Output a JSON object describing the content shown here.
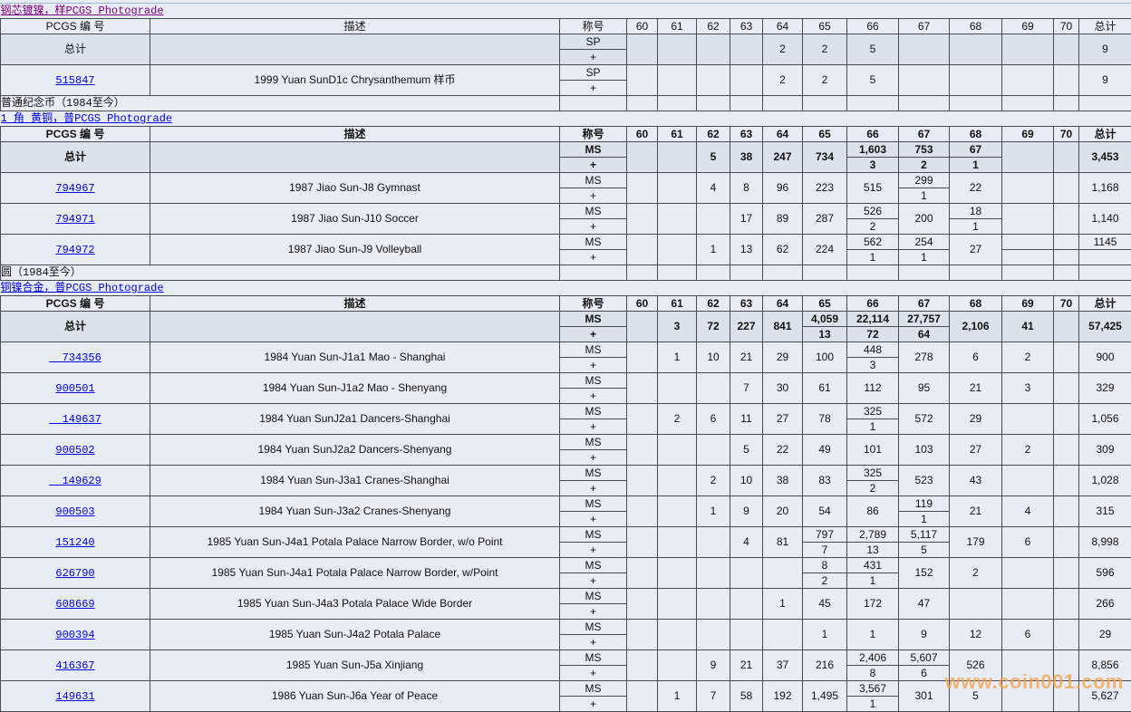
{
  "columns": {
    "pcgs": "PCGS 编 号",
    "desc": "描述",
    "designation": "称号",
    "grades": [
      "60",
      "61",
      "62",
      "63",
      "64",
      "65",
      "66",
      "67",
      "68",
      "69",
      "70"
    ],
    "total": "总计"
  },
  "plus_label": "+",
  "total_label": "总计",
  "colors": {
    "link": "#0000ee",
    "visited_link": "#800080",
    "background": "#e8ecf4",
    "total_row": "#dce2ec",
    "watermark": "#f5a046"
  },
  "sections": [
    {
      "link": "钢芯镀镍，样PCGS Photograde",
      "visited": true,
      "bold": false,
      "total": {
        "grade": "SP",
        "g": {
          "64": "2",
          "65": "2",
          "66": "5"
        },
        "sum": "9"
      },
      "rows": [
        {
          "pcgs": "515847",
          "desc": "1999 Yuan SunD1c Chrysanthemum 样币",
          "grade": "SP",
          "g": {
            "64": "2",
            "65": "2",
            "66": "5"
          },
          "sum": "9"
        }
      ],
      "category": "普通纪念币（1984至今）"
    },
    {
      "link": "1 角 黄铜，普PCGS Photograde",
      "visited": false,
      "bold": true,
      "total": {
        "grade": "MS",
        "g": {
          "62": "5",
          "63": "38",
          "64": "247",
          "65": "734",
          "66": [
            "1,603",
            "3"
          ],
          "67": [
            "753",
            "2"
          ],
          "68": [
            "67",
            "1"
          ]
        },
        "sum": "3,453"
      },
      "rows": [
        {
          "pcgs": "794967",
          "desc": "1987 Jiao Sun-J8 Gymnast",
          "grade": "MS",
          "g": {
            "62": "4",
            "63": "8",
            "64": "96",
            "65": "223",
            "66": "515",
            "67": [
              "299",
              "1"
            ],
            "68": "22"
          },
          "sum": "1,168"
        },
        {
          "pcgs": "794971",
          "desc": "1987 Jiao Sun-J10 Soccer",
          "grade": "MS",
          "g": {
            "63": "17",
            "64": "89",
            "65": "287",
            "66": [
              "526",
              "2"
            ],
            "67": "200",
            "68": [
              "18",
              "1"
            ]
          },
          "sum": "1,140"
        },
        {
          "pcgs": "794972",
          "desc": "1987 Jiao Sun-J9 Volleyball",
          "grade": "MS",
          "g": {
            "62": "1",
            "63": "13",
            "64": "62",
            "65": "224",
            "66": [
              "562",
              "1"
            ],
            "67": [
              "254",
              "1"
            ],
            "68": "27",
            "69": [
              "",
              ""
            ],
            "70": [
              "",
              ""
            ]
          },
          "sum": [
            "1145",
            ""
          ]
        }
      ],
      "category": "圆（1984至今）"
    },
    {
      "link": "铜镍合金，普PCGS Photograde",
      "visited": false,
      "bold": true,
      "total": {
        "grade": "MS",
        "g": {
          "61": "3",
          "62": "72",
          "63": "227",
          "64": "841",
          "65": [
            "4,059",
            "13"
          ],
          "66": [
            "22,114",
            "72"
          ],
          "67": [
            "27,757",
            "64"
          ],
          "68": "2,106",
          "69": "41"
        },
        "sum": "57,425"
      },
      "rows": [
        {
          "pcgs": "  734356",
          "desc": "1984 Yuan Sun-J1a1 Mao - Shanghai",
          "grade": "MS",
          "g": {
            "61": "1",
            "62": "10",
            "63": "21",
            "64": "29",
            "65": "100",
            "66": [
              "448",
              "3"
            ],
            "67": "278",
            "68": "6",
            "69": "2"
          },
          "sum": "900"
        },
        {
          "pcgs": "900501",
          "desc": "1984 Yuan Sun-J1a2 Mao - Shenyang",
          "grade": "MS",
          "g": {
            "63": "7",
            "64": "30",
            "65": "61",
            "66": "112",
            "67": "95",
            "68": "21",
            "69": "3"
          },
          "sum": "329"
        },
        {
          "pcgs": "  149637",
          "desc": "1984 Yuan SunJ2a1 Dancers-Shanghai",
          "grade": "MS",
          "g": {
            "61": "2",
            "62": "6",
            "63": "11",
            "64": "27",
            "65": "78",
            "66": [
              "325",
              "1"
            ],
            "67": "572",
            "68": "29"
          },
          "sum": "1,056"
        },
        {
          "pcgs": "900502",
          "desc": "1984 Yuan SunJ2a2 Dancers-Shenyang",
          "grade": "MS",
          "g": {
            "63": "5",
            "64": "22",
            "65": "49",
            "66": "101",
            "67": "103",
            "68": "27",
            "69": "2"
          },
          "sum": "309"
        },
        {
          "pcgs": "  149629",
          "desc": "1984 Yuan Sun-J3a1 Cranes-Shanghai",
          "grade": "MS",
          "g": {
            "62": "2",
            "63": "10",
            "64": "38",
            "65": "83",
            "66": [
              "325",
              "2"
            ],
            "67": "523",
            "68": "43"
          },
          "sum": "1,028"
        },
        {
          "pcgs": "900503",
          "desc": "1984 Yuan Sun-J3a2 Cranes-Shenyang",
          "grade": "MS",
          "g": {
            "62": "1",
            "63": "9",
            "64": "20",
            "65": "54",
            "66": "86",
            "67": [
              "119",
              "1"
            ],
            "68": "21",
            "69": "4"
          },
          "sum": "315"
        },
        {
          "pcgs": "151240",
          "desc": "1985 Yuan Sun-J4a1 Potala Palace Narrow Border, w/o Point",
          "grade": "MS",
          "g": {
            "63": "4",
            "64": "81",
            "65": [
              "797",
              "7"
            ],
            "66": [
              "2,789",
              "13"
            ],
            "67": [
              "5,117",
              "5"
            ],
            "68": "179",
            "69": "6"
          },
          "sum": "8,998"
        },
        {
          "pcgs": "626790",
          "desc": "1985 Yuan Sun-J4a1 Potala Palace Narrow Border, w/Point",
          "grade": "MS",
          "g": {
            "65": [
              "8",
              "2"
            ],
            "66": [
              "431",
              "1"
            ],
            "67": "152",
            "68": "2"
          },
          "sum": "596"
        },
        {
          "pcgs": "608669",
          "desc": "1985 Yuan Sun-J4a3 Potala Palace Wide Border",
          "grade": "MS",
          "g": {
            "64": "1",
            "65": "45",
            "66": "172",
            "67": "47"
          },
          "sum": "266"
        },
        {
          "pcgs": "900394",
          "desc": "1985 Yuan Sun-J4a2 Potala Palace",
          "grade": "MS",
          "g": {
            "65": "1",
            "66": "1",
            "67": "9",
            "68": "12",
            "69": "6"
          },
          "sum": "29"
        },
        {
          "pcgs": "416367",
          "desc": "1985 Yuan Sun-J5a Xinjiang",
          "grade": "MS",
          "g": {
            "62": "9",
            "63": "21",
            "64": "37",
            "65": "216",
            "66": [
              "2,406",
              "8"
            ],
            "67": [
              "5,607",
              "6"
            ],
            "68": "526"
          },
          "sum": "8,856"
        },
        {
          "pcgs": "149631",
          "desc": "1986 Yuan Sun-J6a Year of Peace",
          "grade": "MS",
          "g": {
            "61": "1",
            "62": "7",
            "63": "58",
            "64": "192",
            "65": "1,495",
            "66": [
              "3,567",
              "1"
            ],
            "67": "301",
            "68": "5"
          },
          "sum": "5,627"
        }
      ]
    }
  ],
  "watermark": "www.coin001.com"
}
